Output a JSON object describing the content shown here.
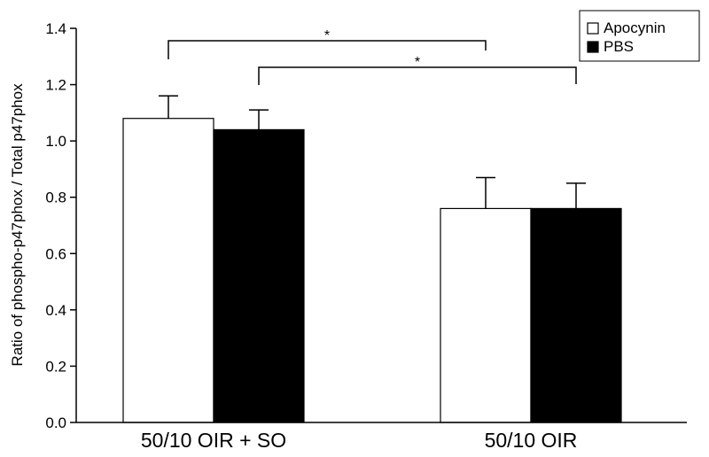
{
  "chart_data": {
    "type": "bar",
    "categories": [
      "50/10 OIR + SO",
      "50/10 OIR"
    ],
    "series": [
      {
        "name": "Apocynin",
        "values": [
          1.08,
          0.76
        ],
        "errors": [
          0.08,
          0.11
        ],
        "color": "#ffffff"
      },
      {
        "name": "PBS",
        "values": [
          1.04,
          0.76
        ],
        "errors": [
          0.07,
          0.09
        ],
        "color": "#000000"
      }
    ],
    "ylabel": "Ratio of phospho-p47phox / Total p47phox",
    "xlabel": "",
    "title": "",
    "ylim": [
      0,
      1.4
    ],
    "yticks": [
      "0.0",
      "0.2",
      "0.4",
      "0.6",
      "0.8",
      "1.0",
      "1.2",
      "1.4"
    ],
    "legend_placement": "top-right",
    "grid": false,
    "significance": [
      {
        "label": "*",
        "from_category": 0,
        "from_series": 0,
        "to_category": 1,
        "to_series": 0
      },
      {
        "label": "*",
        "from_category": 0,
        "from_series": 1,
        "to_category": 1,
        "to_series": 1
      }
    ]
  }
}
